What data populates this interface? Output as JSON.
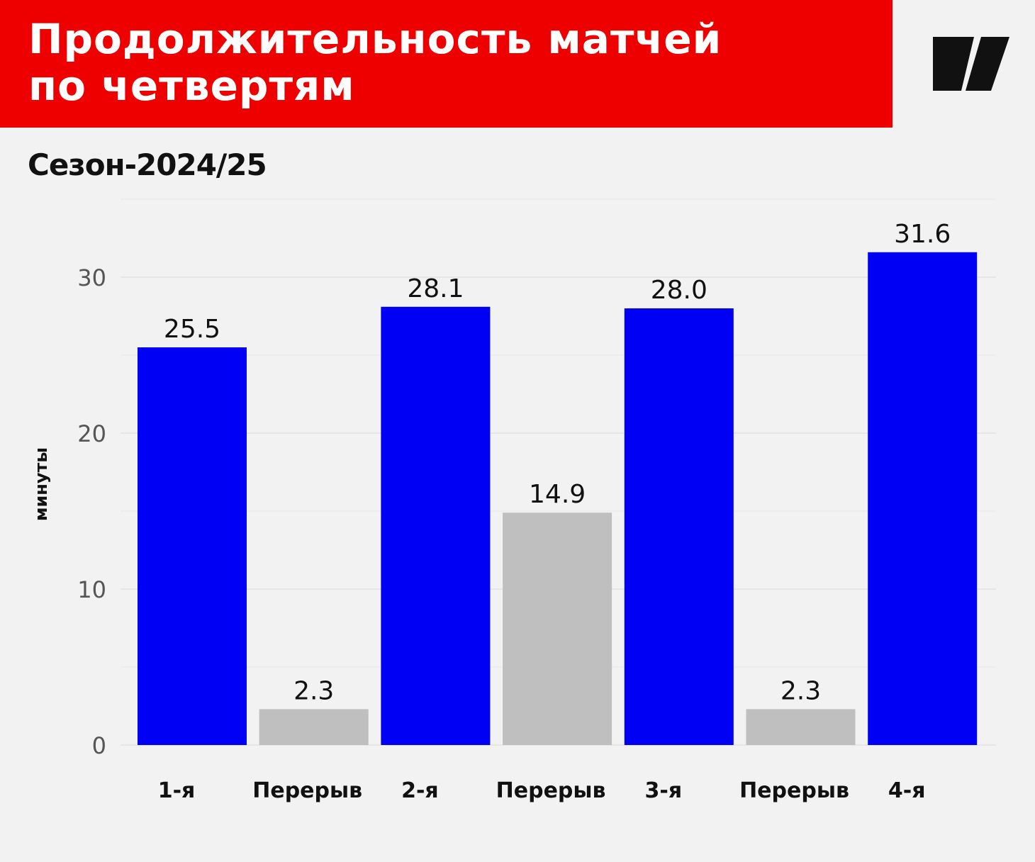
{
  "header": {
    "title_line1": "Продолжительность матчей",
    "title_line2": "по четвертям",
    "subtitle": "Сезон-2024/25"
  },
  "brand": {
    "logo_icon": "slash-logo-icon",
    "header_color": "#ee0000"
  },
  "chart_data": {
    "type": "bar",
    "title": "Продолжительность матчей по четвертям",
    "subtitle": "Сезон-2024/25",
    "xlabel": "",
    "ylabel": "минуты",
    "ylim": [
      0,
      30
    ],
    "yticks": [
      "0",
      "10",
      "20",
      "30"
    ],
    "grid": true,
    "categories": [
      "1-я",
      "Перерыв",
      "2-я",
      "Перерыв",
      "3-я",
      "Перерыв",
      "4-я"
    ],
    "values": [
      25.5,
      2.3,
      28.1,
      14.9,
      28.0,
      2.3,
      31.6
    ],
    "value_labels": [
      "25.5",
      "2.3",
      "28.1",
      "14.9",
      "28.0",
      "2.3",
      "31.6"
    ],
    "colors": [
      "#0000f5",
      "#bfbfbf",
      "#0000f5",
      "#bfbfbf",
      "#0000f5",
      "#bfbfbf",
      "#0000f5"
    ]
  }
}
